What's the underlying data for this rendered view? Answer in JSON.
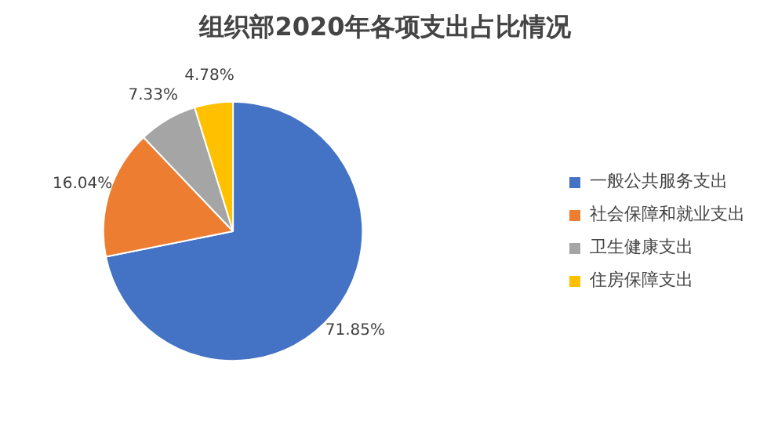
{
  "chart_data": {
    "type": "pie",
    "title": "组织部2020年各项支出占比情况",
    "categories": [
      "一般公共服务支出",
      "社会保障和就业支出",
      "卫生健康支出",
      "住房保障支出"
    ],
    "values": [
      71.85,
      16.04,
      7.33,
      4.78
    ],
    "colors": [
      "#4472c4",
      "#ed7d31",
      "#a5a5a5",
      "#ffc000"
    ],
    "value_labels": [
      "71.85%",
      "16.04%",
      "7.33%",
      "4.78%"
    ],
    "legend": "right"
  }
}
